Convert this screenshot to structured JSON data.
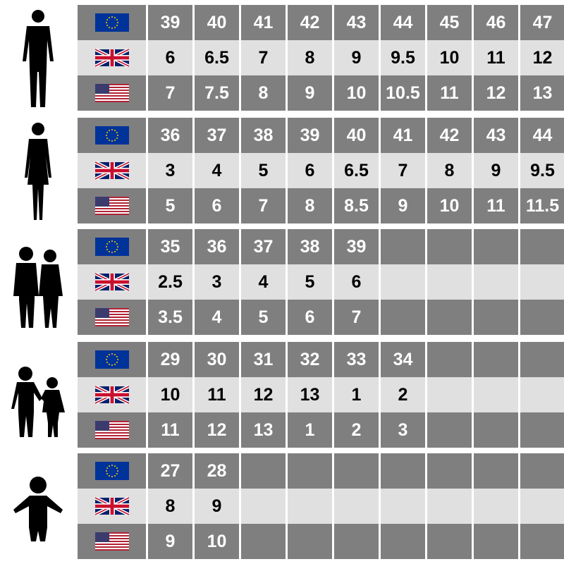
{
  "colors": {
    "dark_row": "#7f7f7f",
    "light_row": "#e0e0e0",
    "eu_flag": "#003399",
    "star": "#ffcc00"
  },
  "row_flags": [
    "eu-flag",
    "uk-flag",
    "us-flag"
  ],
  "groups": [
    {
      "figure": "man-silhouette",
      "rows": [
        [
          "39",
          "40",
          "41",
          "42",
          "43",
          "44",
          "45",
          "46",
          "47"
        ],
        [
          "6",
          "6.5",
          "7",
          "8",
          "9",
          "9.5",
          "10",
          "11",
          "12"
        ],
        [
          "7",
          "7.5",
          "8",
          "9",
          "10",
          "10.5",
          "11",
          "12",
          "13"
        ]
      ]
    },
    {
      "figure": "woman-silhouette",
      "rows": [
        [
          "36",
          "37",
          "38",
          "39",
          "40",
          "41",
          "42",
          "43",
          "44"
        ],
        [
          "3",
          "4",
          "5",
          "6",
          "6.5",
          "7",
          "8",
          "9",
          "9.5"
        ],
        [
          "5",
          "6",
          "7",
          "8",
          "8.5",
          "9",
          "10",
          "11",
          "11.5"
        ]
      ]
    },
    {
      "figure": "teens-silhouette",
      "rows": [
        [
          "35",
          "36",
          "37",
          "38",
          "39",
          "",
          "",
          "",
          ""
        ],
        [
          "2.5",
          "3",
          "4",
          "5",
          "6",
          "",
          "",
          "",
          ""
        ],
        [
          "3.5",
          "4",
          "5",
          "6",
          "7",
          "",
          "",
          "",
          ""
        ]
      ]
    },
    {
      "figure": "children-silhouette",
      "rows": [
        [
          "29",
          "30",
          "31",
          "32",
          "33",
          "34",
          "",
          "",
          ""
        ],
        [
          "10",
          "11",
          "12",
          "13",
          "1",
          "2",
          "",
          "",
          ""
        ],
        [
          "11",
          "12",
          "13",
          "1",
          "2",
          "3",
          "",
          "",
          ""
        ]
      ]
    },
    {
      "figure": "toddler-silhouette",
      "rows": [
        [
          "27",
          "28",
          "",
          "",
          "",
          "",
          "",
          "",
          ""
        ],
        [
          "8",
          "9",
          "",
          "",
          "",
          "",
          "",
          "",
          ""
        ],
        [
          "9",
          "10",
          "",
          "",
          "",
          "",
          "",
          "",
          ""
        ]
      ]
    }
  ]
}
